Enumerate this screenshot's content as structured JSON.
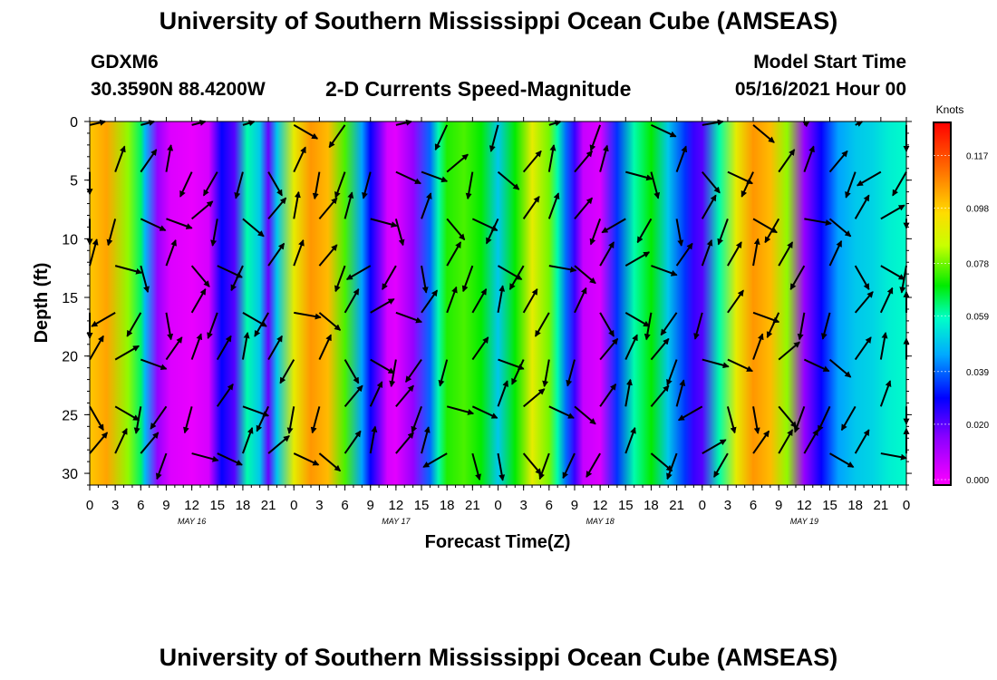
{
  "page": {
    "title_top": "University of Southern Mississippi Ocean Cube (AMSEAS)",
    "title_bottom": "University of Southern Mississippi Ocean Cube (AMSEAS)",
    "station_id": "GDXM6",
    "location": "30.3590N  88.4200W",
    "plot_title": "2-D Currents Speed-Magnitude",
    "model_label": "Model Start Time",
    "model_start": "05/16/2021 Hour 00"
  },
  "chart_data": {
    "type": "heatmap",
    "title": "2-D Currents Speed-Magnitude",
    "xlabel": "Forecast Time(Z)",
    "ylabel": "Depth (ft)",
    "xlim": [
      0,
      96
    ],
    "ylim": [
      31,
      0
    ],
    "x_tick_hours": [
      0,
      3,
      6,
      9,
      12,
      15,
      18,
      21,
      24,
      27,
      30,
      33,
      36,
      39,
      42,
      45,
      48,
      51,
      54,
      57,
      60,
      63,
      66,
      69,
      72,
      75,
      78,
      81,
      84,
      87,
      90,
      93,
      96
    ],
    "x_tick_labels": [
      "0",
      "3",
      "6",
      "9",
      "12",
      "15",
      "18",
      "21",
      "0",
      "3",
      "6",
      "9",
      "12",
      "15",
      "18",
      "21",
      "0",
      "3",
      "6",
      "9",
      "12",
      "15",
      "18",
      "21",
      "0",
      "3",
      "6",
      "9",
      "12",
      "15",
      "18",
      "21",
      "0"
    ],
    "date_labels": [
      {
        "hour": 12,
        "label": "MAY 16"
      },
      {
        "hour": 36,
        "label": "MAY 17"
      },
      {
        "hour": 60,
        "label": "MAY 18"
      },
      {
        "hour": 84,
        "label": "MAY 19"
      }
    ],
    "y_ticks": [
      0,
      5,
      10,
      15,
      20,
      25,
      30
    ],
    "y_tick_labels": [
      "0",
      "5",
      "10",
      "15",
      "20",
      "25",
      "30"
    ],
    "colorbar": {
      "title": "Knots",
      "ticks": [
        0.117,
        0.098,
        0.078,
        0.059,
        0.039,
        0.02,
        0.0
      ],
      "tick_labels": [
        "0.117",
        "0.098",
        "0.078",
        "0.059",
        "0.039",
        "0.020",
        "0.000"
      ],
      "range": [
        0,
        0.127
      ]
    },
    "speed_profile": {
      "hours": [
        0,
        2,
        4.5,
        6,
        6.5,
        8,
        9.5,
        12,
        14,
        15.5,
        17,
        18.5,
        20,
        21,
        22,
        24,
        26,
        28,
        30,
        32,
        33,
        34,
        35,
        36,
        38,
        40,
        41,
        42,
        44,
        46,
        48,
        50,
        52,
        54,
        55,
        56,
        57,
        58,
        60,
        62,
        64,
        66,
        68,
        70,
        71,
        72,
        74,
        76,
        78,
        80,
        82,
        84,
        86,
        88,
        90,
        92,
        94,
        96
      ],
      "knots": [
        0.098,
        0.103,
        0.08,
        0.064,
        0.048,
        0.015,
        0.005,
        0.003,
        0.006,
        0.03,
        0.022,
        0.06,
        0.05,
        0.02,
        0.05,
        0.09,
        0.105,
        0.1,
        0.075,
        0.045,
        0.03,
        0.02,
        0.006,
        0.004,
        0.015,
        0.04,
        0.06,
        0.072,
        0.075,
        0.07,
        0.05,
        0.07,
        0.09,
        0.078,
        0.06,
        0.04,
        0.025,
        0.008,
        0.005,
        0.035,
        0.06,
        0.07,
        0.05,
        0.035,
        0.025,
        0.022,
        0.06,
        0.09,
        0.105,
        0.1,
        0.08,
        0.015,
        0.03,
        0.045,
        0.05,
        0.052,
        0.056,
        0.058
      ]
    },
    "current_vectors_direction_deg": [
      35,
      40,
      30,
      25,
      200,
      190,
      205,
      215,
      35,
      20,
      10,
      30,
      40,
      120,
      200,
      210,
      195,
      20,
      35,
      40,
      10,
      15,
      30,
      105,
      100,
      115,
      130,
      110,
      200,
      205,
      240,
      210,
      165,
      25,
      20,
      30,
      50,
      60,
      190,
      210,
      195,
      170,
      150,
      140,
      120,
      115,
      110,
      130
    ]
  }
}
